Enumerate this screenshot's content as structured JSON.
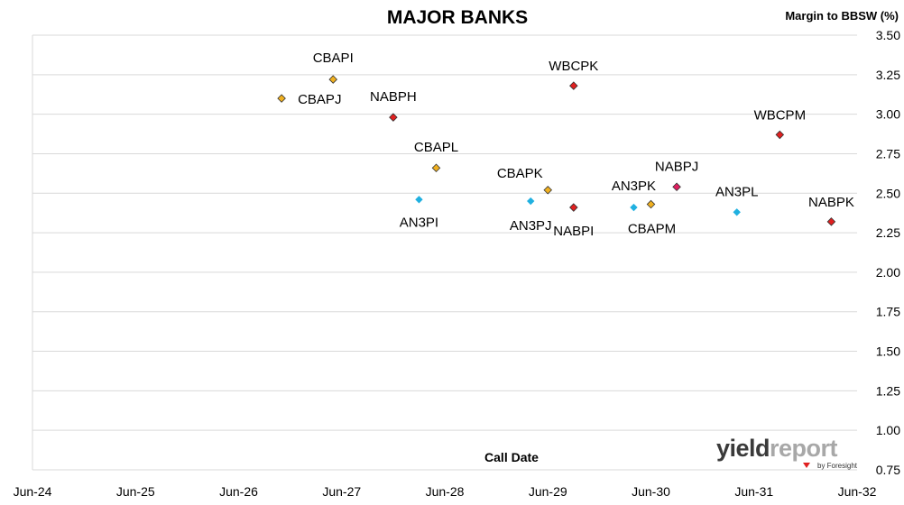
{
  "chart_data": {
    "type": "scatter",
    "title": "MAJOR BANKS",
    "xlabel": "Call Date",
    "ylabel": "Margin to BBSW (%)",
    "x_tick_labels": [
      "Jun-24",
      "Jun-25",
      "Jun-26",
      "Jun-27",
      "Jun-28",
      "Jun-29",
      "Jun-30",
      "Jun-31",
      "Jun-32"
    ],
    "x_range": [
      "2024-06",
      "2032-06"
    ],
    "ylim": [
      0.75,
      3.5
    ],
    "y_ticks": [
      "0.75",
      "1.00",
      "1.25",
      "1.50",
      "1.75",
      "2.00",
      "2.25",
      "2.50",
      "2.75",
      "3.00",
      "3.25",
      "3.50"
    ],
    "y_axis_side": "right",
    "grid": "horizontal",
    "points": [
      {
        "label": "CBAPJ",
        "x": "2026-11",
        "y": 3.1,
        "color": "#f0b020"
      },
      {
        "label": "CBAPI",
        "x": "2027-05",
        "y": 3.22,
        "color": "#f0b020"
      },
      {
        "label": "NABPH",
        "x": "2027-12",
        "y": 2.98,
        "color": "#e02020"
      },
      {
        "label": "AN3PI",
        "x": "2028-03",
        "y": 2.46,
        "color": "#20b0e0"
      },
      {
        "label": "CBAPL",
        "x": "2028-05",
        "y": 2.66,
        "color": "#f0b020"
      },
      {
        "label": "AN3PJ",
        "x": "2029-04",
        "y": 2.45,
        "color": "#20b0e0"
      },
      {
        "label": "CBAPK",
        "x": "2029-06",
        "y": 2.52,
        "color": "#f0b020"
      },
      {
        "label": "WBCPK",
        "x": "2029-09",
        "y": 3.18,
        "color": "#e02020"
      },
      {
        "label": "NABPI",
        "x": "2029-09",
        "y": 2.41,
        "color": "#e02020"
      },
      {
        "label": "AN3PK",
        "x": "2030-04",
        "y": 2.41,
        "color": "#20b0e0"
      },
      {
        "label": "CBAPM",
        "x": "2030-06",
        "y": 2.43,
        "color": "#f0b020"
      },
      {
        "label": "NABPJ",
        "x": "2030-09",
        "y": 2.54,
        "color": "#e02060"
      },
      {
        "label": "AN3PL",
        "x": "2031-04",
        "y": 2.38,
        "color": "#20b0e0"
      },
      {
        "label": "WBCPM",
        "x": "2031-09",
        "y": 2.87,
        "color": "#e02020"
      },
      {
        "label": "NABPK",
        "x": "2032-03",
        "y": 2.32,
        "color": "#e02020"
      }
    ]
  },
  "logo": {
    "part1": "yield",
    "part2": "report",
    "byline": "by Foresight"
  }
}
